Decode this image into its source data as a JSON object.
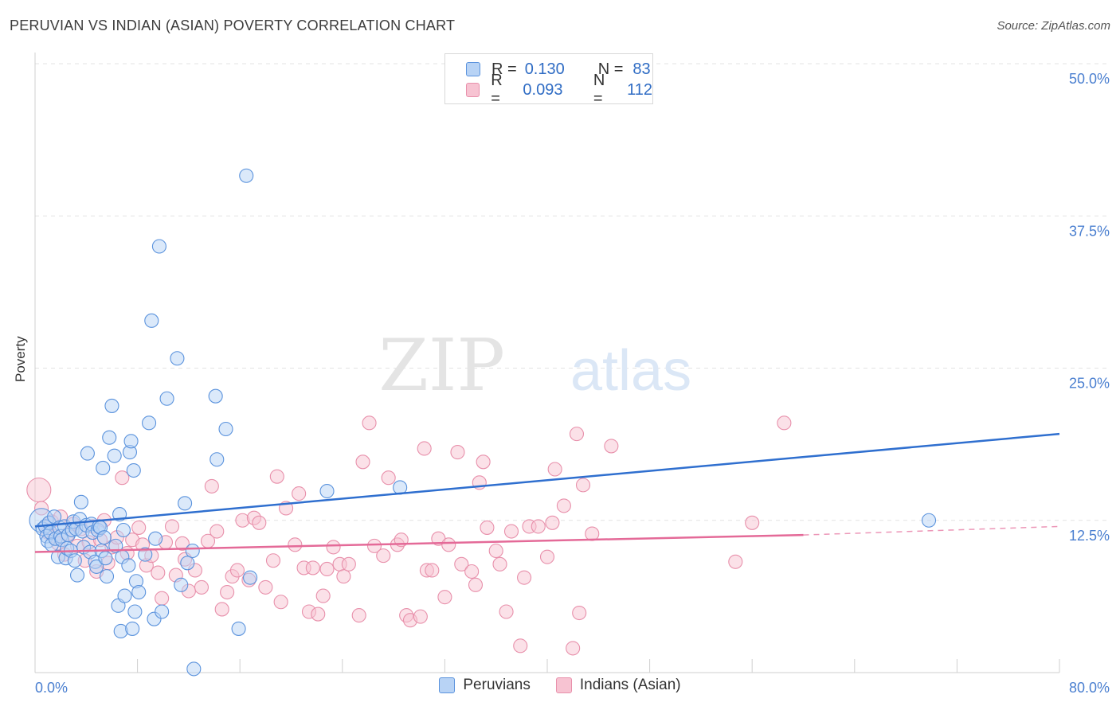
{
  "header": {
    "title": "PERUVIAN VS INDIAN (ASIAN) POVERTY CORRELATION CHART",
    "source": "Source: ZipAtlas.com"
  },
  "watermark": {
    "zip": "ZIP",
    "atlas": "atlas"
  },
  "legend": {
    "r_label": "R =",
    "n_label": "N =",
    "rows": [
      {
        "r": "0.130",
        "n": "83"
      },
      {
        "r": "0.093",
        "n": "112"
      }
    ]
  },
  "colors": {
    "blue_fill": "#b8d3f5",
    "blue_stroke": "#5b93dd",
    "blue_line": "#2f6fcf",
    "pink_fill": "#f7c3d2",
    "pink_stroke": "#e890ab",
    "pink_line": "#e46a98",
    "axis_label": "#4a7fd0",
    "grid": "#e3e3e3"
  },
  "chart_data": {
    "type": "scatter",
    "title": "PERUVIAN VS INDIAN (ASIAN) POVERTY CORRELATION CHART",
    "xlabel": "",
    "ylabel": "Poverty",
    "xlim": [
      0,
      80
    ],
    "ylim": [
      0,
      50
    ],
    "x_tick_labels": [
      "0.0%",
      "80.0%"
    ],
    "y_ticks": [
      12.5,
      25.0,
      37.5,
      50.0
    ],
    "y_tick_labels": [
      "12.5%",
      "25.0%",
      "37.5%",
      "50.0%"
    ],
    "grid": true,
    "legend_position": "top-center",
    "series": [
      {
        "name": "Peruvians",
        "r": 0.13,
        "n": 83,
        "trend": {
          "x": [
            0,
            80
          ],
          "y": [
            12.0,
            19.6
          ]
        },
        "points": [
          [
            0.5,
            12.5
          ],
          [
            0.6,
            11.8
          ],
          [
            0.8,
            12.0
          ],
          [
            0.9,
            11.2
          ],
          [
            1.0,
            10.8
          ],
          [
            1.1,
            12.3
          ],
          [
            1.2,
            11.5
          ],
          [
            1.3,
            10.5
          ],
          [
            1.5,
            12.8
          ],
          [
            1.6,
            11.0
          ],
          [
            1.8,
            9.5
          ],
          [
            1.9,
            11.9
          ],
          [
            2.0,
            11.2
          ],
          [
            2.1,
            10.9
          ],
          [
            2.3,
            12.0
          ],
          [
            2.4,
            9.4
          ],
          [
            2.5,
            10.2
          ],
          [
            2.6,
            11.3
          ],
          [
            2.8,
            10.0
          ],
          [
            2.9,
            11.7
          ],
          [
            3.0,
            12.4
          ],
          [
            3.1,
            9.2
          ],
          [
            3.2,
            11.8
          ],
          [
            3.3,
            8.0
          ],
          [
            3.5,
            12.6
          ],
          [
            3.6,
            14.0
          ],
          [
            3.7,
            11.6
          ],
          [
            3.8,
            10.3
          ],
          [
            4.0,
            12.1
          ],
          [
            4.1,
            18.0
          ],
          [
            4.3,
            9.9
          ],
          [
            4.4,
            12.2
          ],
          [
            4.5,
            11.5
          ],
          [
            4.7,
            9.1
          ],
          [
            4.8,
            8.7
          ],
          [
            4.9,
            11.7
          ],
          [
            5.0,
            12.0
          ],
          [
            5.1,
            11.9
          ],
          [
            5.2,
            10.0
          ],
          [
            5.3,
            16.8
          ],
          [
            5.4,
            11.1
          ],
          [
            5.5,
            9.4
          ],
          [
            5.6,
            7.9
          ],
          [
            5.8,
            19.3
          ],
          [
            6.0,
            21.9
          ],
          [
            6.2,
            17.8
          ],
          [
            6.3,
            10.4
          ],
          [
            6.5,
            5.5
          ],
          [
            6.6,
            13.0
          ],
          [
            6.7,
            3.4
          ],
          [
            6.8,
            9.5
          ],
          [
            6.9,
            11.7
          ],
          [
            7.0,
            6.3
          ],
          [
            7.3,
            8.8
          ],
          [
            7.4,
            18.1
          ],
          [
            7.5,
            19.0
          ],
          [
            7.6,
            3.6
          ],
          [
            7.7,
            16.6
          ],
          [
            7.9,
            7.5
          ],
          [
            8.1,
            6.6
          ],
          [
            7.8,
            5.0
          ],
          [
            8.6,
            9.7
          ],
          [
            8.9,
            20.5
          ],
          [
            9.1,
            28.9
          ],
          [
            9.3,
            4.4
          ],
          [
            9.4,
            11.0
          ],
          [
            9.7,
            35.0
          ],
          [
            9.9,
            5.0
          ],
          [
            10.3,
            22.5
          ],
          [
            11.1,
            25.8
          ],
          [
            11.4,
            7.2
          ],
          [
            11.7,
            13.9
          ],
          [
            11.9,
            9.0
          ],
          [
            12.3,
            10.0
          ],
          [
            12.4,
            0.3
          ],
          [
            14.1,
            22.7
          ],
          [
            14.2,
            17.5
          ],
          [
            14.9,
            20.0
          ],
          [
            15.9,
            3.6
          ],
          [
            16.5,
            40.8
          ],
          [
            16.8,
            7.8
          ],
          [
            22.8,
            14.9
          ],
          [
            28.5,
            15.2
          ],
          [
            69.8,
            12.5
          ]
        ]
      },
      {
        "name": "Indians (Asian)",
        "r": 0.093,
        "n": 112,
        "trend": {
          "x": [
            0,
            60
          ],
          "y": [
            9.9,
            11.3
          ]
        },
        "trend_dashed": {
          "x": [
            60,
            80
          ],
          "y": [
            11.3,
            12.0
          ]
        },
        "points": [
          [
            0.3,
            15.0
          ],
          [
            0.5,
            13.5
          ],
          [
            0.8,
            12.0
          ],
          [
            1.0,
            11.5
          ],
          [
            1.3,
            12.4
          ],
          [
            1.5,
            11.2
          ],
          [
            1.8,
            10.6
          ],
          [
            2.0,
            12.8
          ],
          [
            2.3,
            9.7
          ],
          [
            2.6,
            11.4
          ],
          [
            3.0,
            12.2
          ],
          [
            3.3,
            10.4
          ],
          [
            3.6,
            11.8
          ],
          [
            3.9,
            9.2
          ],
          [
            4.2,
            10.7
          ],
          [
            4.5,
            12.0
          ],
          [
            4.8,
            8.3
          ],
          [
            5.1,
            10.9
          ],
          [
            5.4,
            12.5
          ],
          [
            5.7,
            9.0
          ],
          [
            6.0,
            10.3
          ],
          [
            6.4,
            11.1
          ],
          [
            6.8,
            16.0
          ],
          [
            7.2,
            9.8
          ],
          [
            7.6,
            10.9
          ],
          [
            8.1,
            11.9
          ],
          [
            8.4,
            10.5
          ],
          [
            8.7,
            8.8
          ],
          [
            9.1,
            9.6
          ],
          [
            9.6,
            8.2
          ],
          [
            9.9,
            6.1
          ],
          [
            10.2,
            10.7
          ],
          [
            10.7,
            12.0
          ],
          [
            11.0,
            8.0
          ],
          [
            11.5,
            10.6
          ],
          [
            11.7,
            9.3
          ],
          [
            12.0,
            6.7
          ],
          [
            12.5,
            8.4
          ],
          [
            13.0,
            7.0
          ],
          [
            13.5,
            10.8
          ],
          [
            13.8,
            15.3
          ],
          [
            14.2,
            11.6
          ],
          [
            14.6,
            5.2
          ],
          [
            15.0,
            6.6
          ],
          [
            15.4,
            7.9
          ],
          [
            15.8,
            8.4
          ],
          [
            16.2,
            12.5
          ],
          [
            16.7,
            7.6
          ],
          [
            17.1,
            12.7
          ],
          [
            17.5,
            12.3
          ],
          [
            18.0,
            7.0
          ],
          [
            18.6,
            9.2
          ],
          [
            18.9,
            16.1
          ],
          [
            19.2,
            5.8
          ],
          [
            19.6,
            13.5
          ],
          [
            20.3,
            10.5
          ],
          [
            20.6,
            14.7
          ],
          [
            21.0,
            8.6
          ],
          [
            21.4,
            5.0
          ],
          [
            21.7,
            8.6
          ],
          [
            22.1,
            4.8
          ],
          [
            22.5,
            6.3
          ],
          [
            22.8,
            8.5
          ],
          [
            23.3,
            10.3
          ],
          [
            23.8,
            8.9
          ],
          [
            24.1,
            7.9
          ],
          [
            24.5,
            8.9
          ],
          [
            25.3,
            4.7
          ],
          [
            25.6,
            17.3
          ],
          [
            26.1,
            20.5
          ],
          [
            26.5,
            10.4
          ],
          [
            27.2,
            9.6
          ],
          [
            27.6,
            16.0
          ],
          [
            28.3,
            10.5
          ],
          [
            28.6,
            10.9
          ],
          [
            29.0,
            4.7
          ],
          [
            29.3,
            4.3
          ],
          [
            30.1,
            4.6
          ],
          [
            30.4,
            18.4
          ],
          [
            30.6,
            8.4
          ],
          [
            31.0,
            8.4
          ],
          [
            31.5,
            11.0
          ],
          [
            32.0,
            6.2
          ],
          [
            32.3,
            10.5
          ],
          [
            33.0,
            18.1
          ],
          [
            33.3,
            8.9
          ],
          [
            34.1,
            8.3
          ],
          [
            34.4,
            7.2
          ],
          [
            34.7,
            15.6
          ],
          [
            35.0,
            17.3
          ],
          [
            35.3,
            11.9
          ],
          [
            36.0,
            10.0
          ],
          [
            36.3,
            8.9
          ],
          [
            36.8,
            5.0
          ],
          [
            37.2,
            11.6
          ],
          [
            37.9,
            2.2
          ],
          [
            38.2,
            7.8
          ],
          [
            38.6,
            12.0
          ],
          [
            39.3,
            12.0
          ],
          [
            40.0,
            9.5
          ],
          [
            40.4,
            12.3
          ],
          [
            40.6,
            16.7
          ],
          [
            41.3,
            13.7
          ],
          [
            42.0,
            2.0
          ],
          [
            42.3,
            19.6
          ],
          [
            42.5,
            4.9
          ],
          [
            42.8,
            15.4
          ],
          [
            43.5,
            11.4
          ],
          [
            45.0,
            18.6
          ],
          [
            54.7,
            9.1
          ],
          [
            58.5,
            20.5
          ],
          [
            56.0,
            12.3
          ]
        ]
      }
    ]
  },
  "bottom_legend": [
    "Peruvians",
    "Indians (Asian)"
  ]
}
